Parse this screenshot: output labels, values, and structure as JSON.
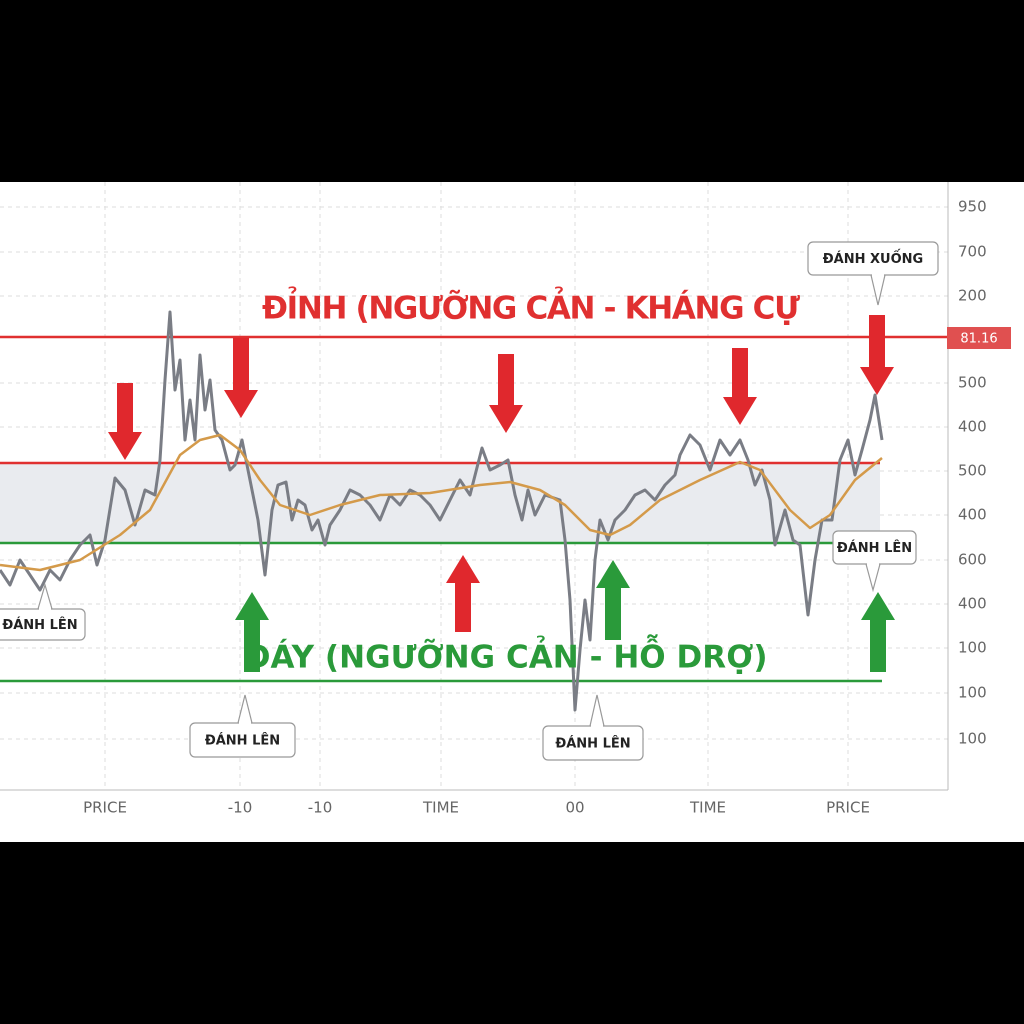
{
  "title_top": "ĐỈNH (NGƯỠNG CẢN - KHÁNG CỰ",
  "title_bottom": "ĐÁY (NGƯỠNG CẢN - HỖ DRỢ)",
  "price_tag": "81.16",
  "callouts": [
    "ĐÁNH XUỐNG",
    "ĐÁNH LÊN",
    "ĐÁNH LÊN",
    "ĐÁNH LÊN",
    "ĐÁNH LÊN"
  ],
  "y_axis_labels": [
    "950",
    "700",
    "200",
    "500",
    "400",
    "500",
    "400",
    "600",
    "400",
    "100",
    "100",
    "100"
  ],
  "x_axis_labels": [
    "PRICE",
    "-10",
    "-10",
    "TIME",
    "00",
    "TIME",
    "PRICE"
  ]
}
